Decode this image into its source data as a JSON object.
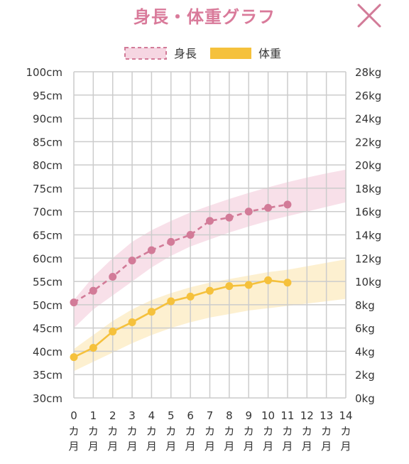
{
  "header": {
    "title": "身長・体重グラフ",
    "close_icon": "close-icon"
  },
  "colors": {
    "height": "#d27b98",
    "height_band": "#f6d6e2",
    "weight": "#f5c13c",
    "weight_band": "#fdecc4",
    "title": "#d97a9a",
    "grid": "#cccccc",
    "axis_text": "#333333"
  },
  "chart_data": {
    "type": "line",
    "x_categories": [
      "0",
      "1",
      "2",
      "3",
      "4",
      "5",
      "6",
      "7",
      "8",
      "9",
      "10",
      "11",
      "12",
      "13",
      "14"
    ],
    "x_unit": "カ月",
    "y_left": {
      "ticks": [
        "100cm",
        "95cm",
        "90cm",
        "85cm",
        "80cm",
        "75cm",
        "70cm",
        "65cm",
        "60cm",
        "55cm",
        "50cm",
        "45cm",
        "40cm",
        "35cm",
        "30cm"
      ],
      "range": [
        30,
        100
      ],
      "unit": "cm"
    },
    "y_right": {
      "ticks": [
        "28kg",
        "26kg",
        "24kg",
        "22kg",
        "20kg",
        "18kg",
        "16kg",
        "14kg",
        "12kg",
        "10kg",
        "8kg",
        "6kg",
        "4kg",
        "2kg",
        "0kg"
      ],
      "range": [
        0,
        28
      ],
      "unit": "kg"
    },
    "legend": {
      "height_label": "身長",
      "weight_label": "体重",
      "position": "top-center"
    },
    "series": [
      {
        "name": "身長",
        "axis": "left",
        "style": "dashed",
        "x": [
          0,
          1,
          2,
          3,
          4,
          5,
          6,
          7,
          8,
          9,
          10,
          11
        ],
        "values": [
          50.5,
          53.0,
          56.0,
          59.5,
          61.7,
          63.5,
          65.0,
          68.0,
          68.7,
          70.0,
          70.8,
          71.5
        ]
      },
      {
        "name": "体重",
        "axis": "right",
        "style": "solid",
        "x": [
          0,
          1,
          2,
          3,
          4,
          5,
          6,
          7,
          8,
          9,
          10,
          11
        ],
        "values": [
          3.5,
          4.3,
          5.7,
          6.5,
          7.4,
          8.3,
          8.7,
          9.2,
          9.6,
          9.7,
          10.1,
          9.9
        ]
      }
    ],
    "bands": [
      {
        "series": "身長",
        "x": [
          0,
          1,
          2,
          3,
          4,
          5,
          6,
          7,
          8,
          9,
          10,
          11,
          12,
          13,
          14
        ],
        "lower": [
          45.0,
          49.0,
          52.0,
          55.0,
          58.0,
          60.5,
          62.5,
          64.0,
          65.5,
          66.8,
          68.0,
          69.0,
          70.0,
          71.0,
          72.0
        ],
        "upper": [
          51.0,
          56.0,
          60.0,
          63.5,
          66.0,
          68.0,
          69.8,
          71.3,
          72.7,
          74.0,
          75.2,
          76.3,
          77.3,
          78.2,
          79.0
        ]
      },
      {
        "series": "体重",
        "x": [
          0,
          1,
          2,
          3,
          4,
          5,
          6,
          7,
          8,
          9,
          10,
          11,
          12,
          13,
          14
        ],
        "lower": [
          2.3,
          3.1,
          3.9,
          4.7,
          5.4,
          6.0,
          6.5,
          6.9,
          7.2,
          7.5,
          7.7,
          7.9,
          8.1,
          8.3,
          8.5
        ],
        "upper": [
          4.2,
          5.4,
          6.6,
          7.6,
          8.4,
          9.0,
          9.5,
          9.9,
          10.2,
          10.5,
          10.8,
          11.0,
          11.3,
          11.6,
          11.9
        ]
      }
    ],
    "grid": true
  }
}
